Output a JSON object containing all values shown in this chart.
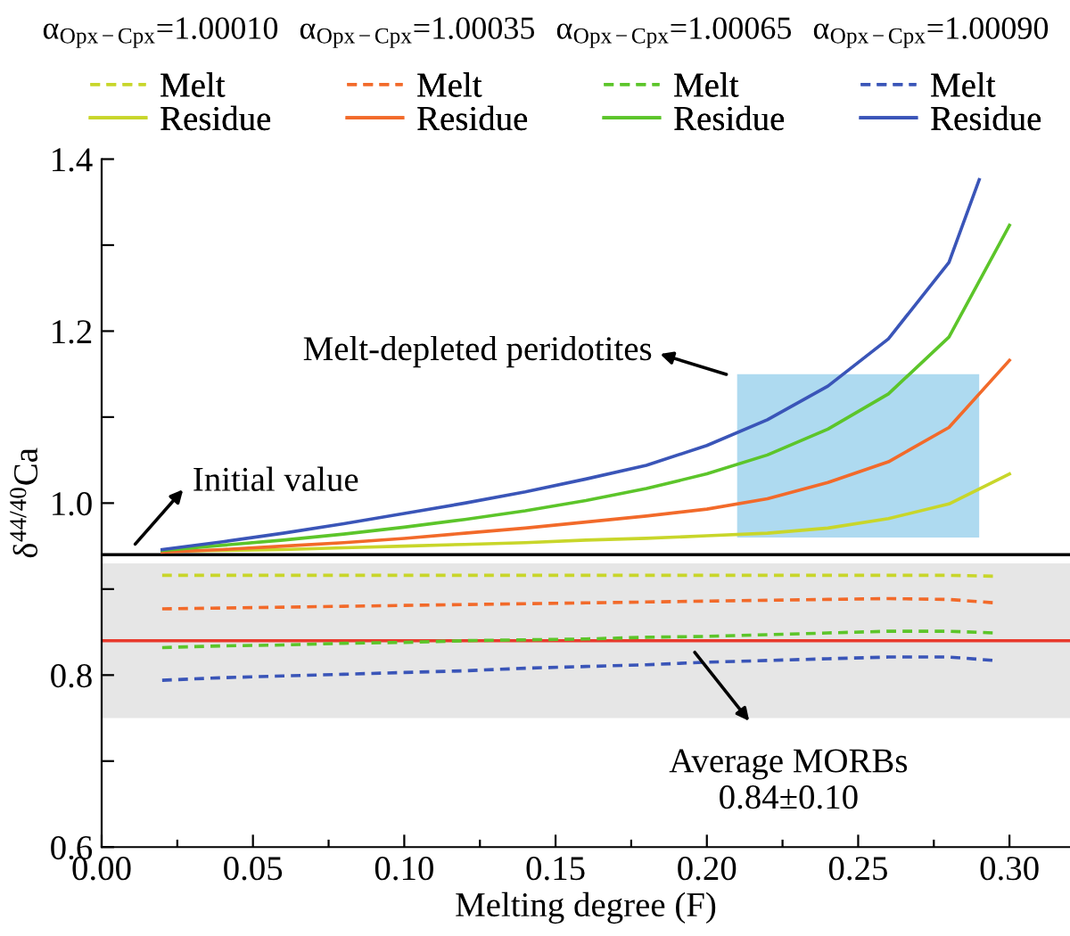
{
  "chart_data": {
    "type": "line",
    "xlabel": "Melting degree (F)",
    "ylabel": "δ$^{44/40}$Ca",
    "xlim": [
      0,
      0.32
    ],
    "ylim": [
      0.6,
      1.4
    ],
    "xticks": [
      {
        "value": 0,
        "label": "0.00"
      },
      {
        "value": 0.025,
        "label": null
      },
      {
        "value": 0.05,
        "label": "0.05"
      },
      {
        "value": 0.075,
        "label": null
      },
      {
        "value": 0.1,
        "label": "0.10"
      },
      {
        "value": 0.125,
        "label": null
      },
      {
        "value": 0.15,
        "label": "0.15"
      },
      {
        "value": 0.175,
        "label": null
      },
      {
        "value": 0.2,
        "label": "0.20"
      },
      {
        "value": 0.225,
        "label": null
      },
      {
        "value": 0.25,
        "label": "0.25"
      },
      {
        "value": 0.275,
        "label": null
      },
      {
        "value": 0.3,
        "label": "0.30"
      }
    ],
    "yticks": [
      0.6,
      {
        "value": 0.7,
        "label": null
      },
      0.8,
      {
        "value": 0.9,
        "label": null
      },
      {
        "value": 1.0,
        "label": "1.0"
      },
      {
        "value": 1.1,
        "label": null
      },
      1.2,
      {
        "value": 1.3,
        "label": null
      },
      1.4
    ],
    "grid": false,
    "legend": "top",
    "marker": "none",
    "series": [
      {
        "name": "Melt",
        "color": "#c8d62a",
        "line_style": "dashed",
        "x": [
          0.02,
          0.04,
          0.06,
          0.08,
          0.1,
          0.12,
          0.14,
          0.16,
          0.18,
          0.2,
          0.22,
          0.24,
          0.26,
          0.28,
          0.295
        ],
        "values": [
          0.916,
          0.916,
          0.916,
          0.916,
          0.916,
          0.916,
          0.916,
          0.916,
          0.916,
          0.916,
          0.916,
          0.916,
          0.916,
          0.916,
          0.915
        ]
      },
      {
        "name": "Residue",
        "color": "#c8d62a",
        "line_style": "solid",
        "x": [
          0.02,
          0.04,
          0.06,
          0.08,
          0.1,
          0.12,
          0.14,
          0.16,
          0.18,
          0.2,
          0.22,
          0.24,
          0.26,
          0.28,
          0.3
        ],
        "values": [
          0.944,
          0.945,
          0.946,
          0.948,
          0.95,
          0.952,
          0.954,
          0.957,
          0.959,
          0.962,
          0.965,
          0.971,
          0.982,
          0.999,
          1.034
        ]
      },
      {
        "name": "Melt",
        "color": "#f26a2a",
        "line_style": "dashed",
        "x": [
          0.02,
          0.04,
          0.06,
          0.08,
          0.1,
          0.12,
          0.14,
          0.16,
          0.18,
          0.2,
          0.22,
          0.24,
          0.26,
          0.28,
          0.295
        ],
        "values": [
          0.877,
          0.878,
          0.879,
          0.88,
          0.881,
          0.882,
          0.883,
          0.884,
          0.885,
          0.886,
          0.887,
          0.888,
          0.889,
          0.888,
          0.884
        ]
      },
      {
        "name": "Residue",
        "color": "#f26a2a",
        "line_style": "solid",
        "x": [
          0.02,
          0.04,
          0.06,
          0.08,
          0.1,
          0.12,
          0.14,
          0.16,
          0.18,
          0.2,
          0.22,
          0.24,
          0.26,
          0.28,
          0.3
        ],
        "values": [
          0.943,
          0.946,
          0.95,
          0.954,
          0.959,
          0.965,
          0.971,
          0.978,
          0.985,
          0.993,
          1.005,
          1.024,
          1.048,
          1.088,
          1.166
        ]
      },
      {
        "name": "Melt",
        "color": "#5cc52a",
        "line_style": "dashed",
        "x": [
          0.02,
          0.04,
          0.06,
          0.08,
          0.1,
          0.12,
          0.14,
          0.16,
          0.18,
          0.2,
          0.22,
          0.24,
          0.26,
          0.28,
          0.295
        ],
        "values": [
          0.832,
          0.834,
          0.835,
          0.837,
          0.838,
          0.84,
          0.841,
          0.842,
          0.844,
          0.845,
          0.847,
          0.849,
          0.851,
          0.851,
          0.849
        ]
      },
      {
        "name": "Residue",
        "color": "#5cc52a",
        "line_style": "solid",
        "x": [
          0.02,
          0.04,
          0.06,
          0.08,
          0.1,
          0.12,
          0.14,
          0.16,
          0.18,
          0.2,
          0.22,
          0.24,
          0.26,
          0.28,
          0.3
        ],
        "values": [
          0.945,
          0.951,
          0.957,
          0.964,
          0.972,
          0.981,
          0.991,
          1.003,
          1.017,
          1.034,
          1.056,
          1.086,
          1.127,
          1.193,
          1.323
        ]
      },
      {
        "name": "Melt",
        "color": "#3a55b8",
        "line_style": "dashed",
        "x": [
          0.02,
          0.04,
          0.06,
          0.08,
          0.1,
          0.12,
          0.14,
          0.16,
          0.18,
          0.2,
          0.22,
          0.24,
          0.26,
          0.28,
          0.295
        ],
        "values": [
          0.794,
          0.797,
          0.799,
          0.801,
          0.803,
          0.805,
          0.808,
          0.81,
          0.812,
          0.815,
          0.817,
          0.819,
          0.821,
          0.821,
          0.817
        ]
      },
      {
        "name": "Residue",
        "color": "#3a55b8",
        "line_style": "solid",
        "x": [
          0.02,
          0.04,
          0.06,
          0.08,
          0.1,
          0.12,
          0.14,
          0.16,
          0.18,
          0.2,
          0.22,
          0.24,
          0.26,
          0.28,
          0.29
        ],
        "values": [
          0.946,
          0.955,
          0.965,
          0.976,
          0.988,
          1.0,
          1.013,
          1.028,
          1.044,
          1.067,
          1.097,
          1.136,
          1.191,
          1.28,
          1.376
        ]
      }
    ],
    "ref_lines": [
      {
        "axis": "y",
        "value": 0.94,
        "color": "#000000"
      },
      {
        "axis": "y",
        "value": 0.84,
        "color": "#e8392c"
      }
    ],
    "bands": [
      {
        "axis": "y",
        "from": 0.75,
        "to": 0.93,
        "color": "#e6e6e6"
      },
      {
        "axis": "x",
        "from": 0.21,
        "to": 0.29,
        "color": "#aedaf0"
      }
    ],
    "annotations": [
      "α$_{Opx−Cpx}$=1.00010",
      "α$_{Opx−Cpx}$=1.00035",
      "α$_{Opx−Cpx}$=1.00065",
      "α$_{Opx−Cpx}$=1.00090",
      {
        "text": "Initial value",
        "x": 0.01,
        "y": 0.948
      },
      {
        "text": "Melt-depleted peridotites",
        "x": 0.208,
        "y": 1.148
      },
      {
        "text": "Average MORBs\n0.84±0.10",
        "x": 0.195,
        "y": 0.831
      }
    ]
  }
}
